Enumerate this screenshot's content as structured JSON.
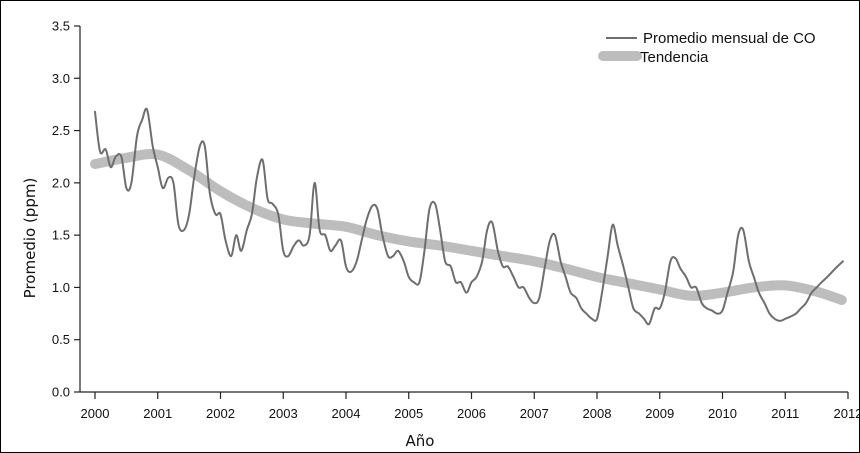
{
  "chart_data": {
    "type": "line",
    "xlabel": "Año",
    "ylabel": "Promedio (ppm)",
    "xlim": [
      2000,
      2012
    ],
    "ylim": [
      0,
      3.5
    ],
    "x_ticks": [
      "2000",
      "2001",
      "2002",
      "2003",
      "2004",
      "2005",
      "2006",
      "2007",
      "2008",
      "2009",
      "2010",
      "2011",
      "2012"
    ],
    "y_ticks": [
      "0.0",
      "0.5",
      "1.0",
      "1.5",
      "2.0",
      "2.5",
      "3.0",
      "3.5"
    ],
    "y_tick_values": [
      0,
      0.5,
      1.0,
      1.5,
      2.0,
      2.5,
      3.0,
      3.5
    ],
    "legend_position": "top-right",
    "series": [
      {
        "name": "Promedio mensual de CO",
        "color": "#6e6e6e",
        "x": [
          2000.0,
          2000.08,
          2000.17,
          2000.25,
          2000.33,
          2000.42,
          2000.5,
          2000.58,
          2000.67,
          2000.75,
          2000.83,
          2000.92,
          2001.0,
          2001.08,
          2001.17,
          2001.25,
          2001.33,
          2001.42,
          2001.5,
          2001.58,
          2001.67,
          2001.75,
          2001.83,
          2001.92,
          2002.0,
          2002.08,
          2002.17,
          2002.25,
          2002.33,
          2002.42,
          2002.5,
          2002.58,
          2002.67,
          2002.75,
          2002.83,
          2002.92,
          2003.0,
          2003.08,
          2003.17,
          2003.25,
          2003.33,
          2003.42,
          2003.5,
          2003.58,
          2003.67,
          2003.75,
          2003.83,
          2003.92,
          2004.0,
          2004.08,
          2004.17,
          2004.25,
          2004.33,
          2004.42,
          2004.5,
          2004.58,
          2004.67,
          2004.75,
          2004.83,
          2004.92,
          2005.0,
          2005.08,
          2005.17,
          2005.25,
          2005.33,
          2005.42,
          2005.5,
          2005.58,
          2005.67,
          2005.75,
          2005.83,
          2005.92,
          2006.0,
          2006.08,
          2006.17,
          2006.25,
          2006.33,
          2006.42,
          2006.5,
          2006.58,
          2006.67,
          2006.75,
          2006.83,
          2006.92,
          2007.0,
          2007.08,
          2007.17,
          2007.25,
          2007.33,
          2007.42,
          2007.5,
          2007.58,
          2007.67,
          2007.75,
          2007.83,
          2007.92,
          2008.0,
          2008.08,
          2008.17,
          2008.25,
          2008.33,
          2008.42,
          2008.5,
          2008.58,
          2008.67,
          2008.75,
          2008.83,
          2008.92,
          2009.0,
          2009.08,
          2009.17,
          2009.25,
          2009.33,
          2009.42,
          2009.5,
          2009.58,
          2009.67,
          2009.75,
          2009.83,
          2009.92,
          2010.0,
          2010.08,
          2010.17,
          2010.25,
          2010.33,
          2010.42,
          2010.5,
          2010.58,
          2010.67,
          2010.75,
          2010.83,
          2010.92,
          2011.0,
          2011.08,
          2011.17,
          2011.25,
          2011.33,
          2011.42,
          2011.5,
          2011.58,
          2011.67,
          2011.75,
          2011.83,
          2011.92
        ],
        "y": [
          2.68,
          2.3,
          2.32,
          2.15,
          2.25,
          2.25,
          1.95,
          2.0,
          2.45,
          2.6,
          2.7,
          2.35,
          2.15,
          1.95,
          2.05,
          2.0,
          1.6,
          1.55,
          1.7,
          2.05,
          2.35,
          2.35,
          1.9,
          1.7,
          1.7,
          1.45,
          1.3,
          1.5,
          1.35,
          1.55,
          1.7,
          2.05,
          2.22,
          1.85,
          1.8,
          1.7,
          1.35,
          1.3,
          1.4,
          1.45,
          1.4,
          1.5,
          2.0,
          1.55,
          1.5,
          1.35,
          1.4,
          1.45,
          1.2,
          1.15,
          1.25,
          1.45,
          1.65,
          1.78,
          1.75,
          1.5,
          1.3,
          1.3,
          1.35,
          1.25,
          1.1,
          1.05,
          1.05,
          1.35,
          1.75,
          1.8,
          1.55,
          1.25,
          1.2,
          1.05,
          1.05,
          0.95,
          1.05,
          1.1,
          1.25,
          1.55,
          1.62,
          1.35,
          1.2,
          1.2,
          1.1,
          1.0,
          1.0,
          0.9,
          0.85,
          0.9,
          1.2,
          1.45,
          1.5,
          1.25,
          1.1,
          0.95,
          0.9,
          0.8,
          0.75,
          0.7,
          0.7,
          0.95,
          1.3,
          1.6,
          1.4,
          1.2,
          1.0,
          0.8,
          0.75,
          0.7,
          0.65,
          0.8,
          0.8,
          0.95,
          1.25,
          1.28,
          1.18,
          1.1,
          1.0,
          1.0,
          0.85,
          0.8,
          0.78,
          0.75,
          0.78,
          0.95,
          1.15,
          1.5,
          1.55,
          1.25,
          1.1,
          0.95,
          0.85,
          0.75,
          0.7,
          0.68,
          0.7,
          0.72,
          0.75,
          0.8,
          0.85,
          0.95,
          1.0,
          1.05,
          1.1,
          1.15,
          1.2,
          1.25
        ]
      },
      {
        "name": "Tendencia",
        "color": "#bdbdbd",
        "x": [
          2000.0,
          2000.5,
          2001.0,
          2001.5,
          2002.0,
          2002.5,
          2003.0,
          2003.5,
          2004.0,
          2004.5,
          2005.0,
          2005.5,
          2006.0,
          2006.5,
          2007.0,
          2007.5,
          2008.0,
          2008.5,
          2009.0,
          2009.5,
          2010.0,
          2010.5,
          2011.0,
          2011.5,
          2011.9
        ],
        "y": [
          2.18,
          2.24,
          2.27,
          2.12,
          1.92,
          1.76,
          1.65,
          1.61,
          1.58,
          1.5,
          1.44,
          1.4,
          1.35,
          1.3,
          1.25,
          1.18,
          1.1,
          1.04,
          0.98,
          0.92,
          0.95,
          1.0,
          1.02,
          0.96,
          0.88
        ]
      }
    ]
  }
}
